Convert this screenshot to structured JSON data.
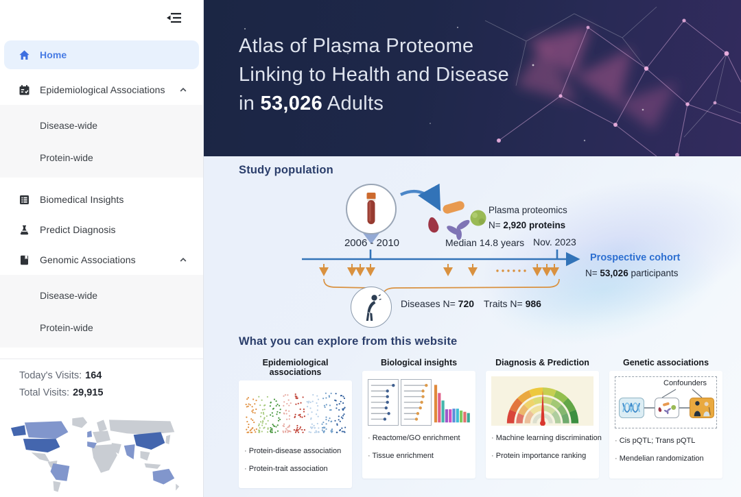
{
  "sidebar": {
    "home": "Home",
    "epidemiological": "Epidemiological Associations",
    "epi_children": [
      "Disease-wide",
      "Protein-wide"
    ],
    "biomedical": "Biomedical Insights",
    "predict": "Predict Diagnosis",
    "genomic": "Genomic Associations",
    "gen_children": [
      "Disease-wide",
      "Protein-wide"
    ],
    "today_label": "Today's Visits:",
    "today_value": "164",
    "total_label": "Total Visits:",
    "total_value": "29,915"
  },
  "banner": {
    "line1": "Atlas of Plasma Proteome",
    "line2": "Linking to Health and Disease",
    "line3_pre": "in",
    "line3_num": "53,026",
    "line3_post": "Adults"
  },
  "study": {
    "heading": "Study population",
    "period": "2006 - 2010",
    "plasma_title": "Plasma proteomics",
    "plasma_n_pre": "N=",
    "plasma_n_value": "2,920 proteins",
    "median": "Median 14.8 years",
    "end_date": "Nov. 2023",
    "cohort_title": "Prospective cohort",
    "cohort_n_pre": "N=",
    "cohort_n_value": "53,026",
    "cohort_n_post": "participants",
    "diseases_pre": "Diseases N=",
    "diseases_value": "720",
    "traits_pre": "Traits N=",
    "traits_value": "986"
  },
  "explore": {
    "heading": "What you can explore from this website",
    "cards": [
      {
        "title": "Epidemiological associations",
        "bullets": [
          "Protein-disease association",
          "Protein-trait association"
        ]
      },
      {
        "title": "Biological insights",
        "bullets": [
          "Reactome/GO enrichment",
          "Tissue enrichment"
        ]
      },
      {
        "title": "Diagnosis & Prediction",
        "bullets": [
          "Machine learning discrimination",
          "Protein importance ranking"
        ]
      },
      {
        "title": "Genetic associations",
        "bullets": [
          "Cis pQTL; Trans pQTL",
          "Mendelian randomization"
        ],
        "note": "Confounders"
      }
    ]
  },
  "colors": {
    "accent_blue": "#3d6fe0",
    "banner_navy": "#1b2644",
    "timeline_blue": "#3273b8",
    "highlight_orange": "#d9913f",
    "cohort_blue": "#2d6fd1",
    "map_dark_country": "#4466ae",
    "map_medium_country": "#8196cc"
  }
}
